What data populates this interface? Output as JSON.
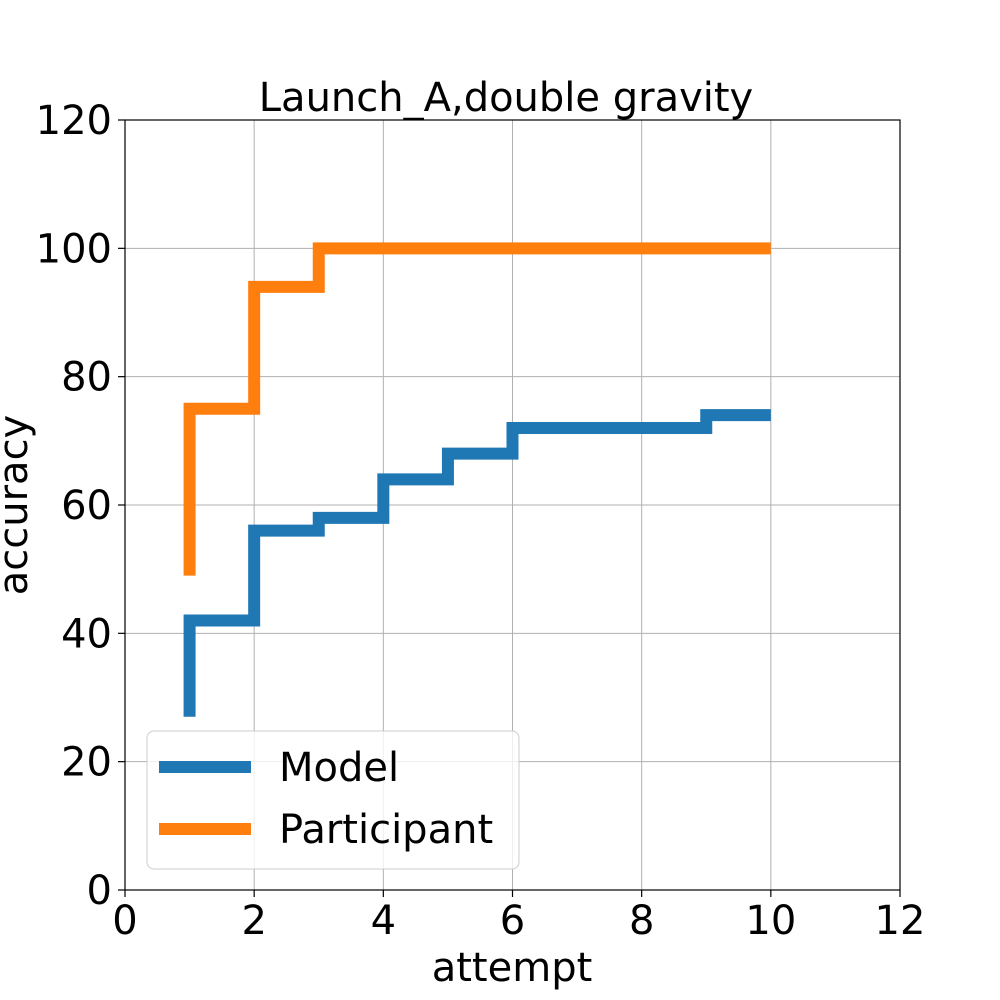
{
  "chart_data": {
    "type": "line",
    "step": "post",
    "title": "Launch_A,double gravity",
    "xlabel": "attempt",
    "ylabel": "accuracy",
    "xlim": [
      0,
      12
    ],
    "ylim": [
      0,
      120
    ],
    "xticks": [
      0,
      2,
      4,
      6,
      8,
      10,
      12
    ],
    "yticks": [
      0,
      20,
      40,
      60,
      80,
      100,
      120
    ],
    "grid": true,
    "legend_position": "lower-left",
    "series": [
      {
        "name": "Model",
        "color": "#1f77b4",
        "x": [
          1,
          1,
          2,
          3,
          4,
          5,
          6,
          7,
          8,
          9,
          10
        ],
        "y": [
          27,
          42,
          56,
          58,
          64,
          68,
          72,
          72,
          72,
          74,
          74
        ]
      },
      {
        "name": "Participant",
        "color": "#ff7f0e",
        "x": [
          1,
          1,
          2,
          3,
          4,
          5,
          6,
          7,
          8,
          9,
          10
        ],
        "y": [
          49,
          75,
          94,
          100,
          100,
          100,
          100,
          100,
          100,
          100,
          100
        ]
      }
    ]
  }
}
